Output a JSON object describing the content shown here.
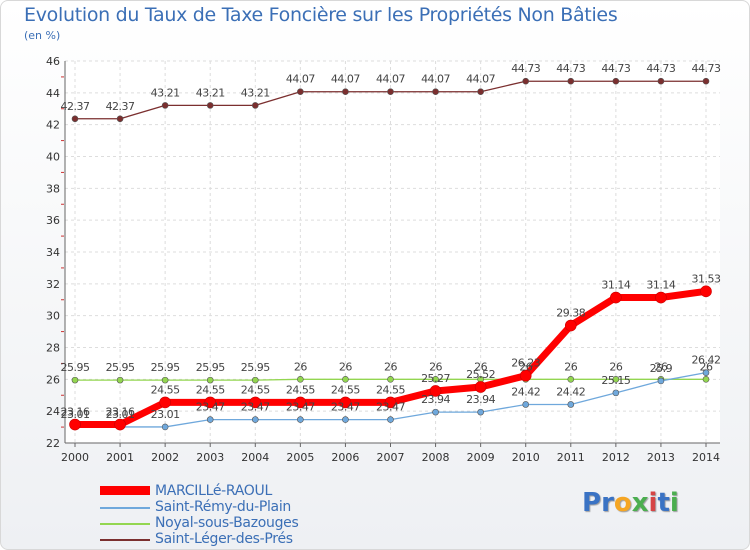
{
  "chart_data": {
    "type": "line",
    "title": "Evolution du Taux de Taxe Foncière sur les Propriétés Non Bâties",
    "ylabel": "(en %)",
    "ylim": [
      22,
      46
    ],
    "yticks": [
      "22",
      "24",
      "26",
      "28",
      "30",
      "32",
      "34",
      "36",
      "38",
      "40",
      "42",
      "44",
      "46"
    ],
    "categories": [
      "2000",
      "2001",
      "2002",
      "2003",
      "2004",
      "2005",
      "2006",
      "2007",
      "2008",
      "2009",
      "2010",
      "2011",
      "2012",
      "2013",
      "2014"
    ],
    "series": [
      {
        "name": "MARCILLé-RAOUL",
        "color": "#ff0000",
        "values": [
          23.16,
          23.16,
          24.55,
          24.55,
          24.55,
          24.55,
          24.55,
          24.55,
          25.27,
          25.52,
          26.23,
          29.38,
          31.14,
          31.14,
          31.53
        ],
        "labels": [
          "23.16",
          "23.16",
          "24.55",
          "24.55",
          "24.55",
          "24.55",
          "24.55",
          "24.55",
          "25.27",
          "25.52",
          "26.23",
          "29.38",
          "31.14",
          "31.14",
          "31.53"
        ]
      },
      {
        "name": "Saint-Rémy-du-Plain",
        "color": "#6fa8dc",
        "values": [
          23.01,
          23.01,
          23.01,
          23.47,
          23.47,
          23.47,
          23.47,
          23.47,
          23.94,
          23.94,
          24.42,
          24.42,
          25.15,
          25.9,
          26.42
        ],
        "labels": [
          "23.01",
          "23.01",
          "23.01",
          "23.47",
          "23.47",
          "23.47",
          "23.47",
          "23.47",
          "23.94",
          "23.94",
          "24.42",
          "24.42",
          "25.15",
          "25.9",
          "26.42"
        ]
      },
      {
        "name": "Noyal-sous-Bazouges",
        "color": "#93d650",
        "values": [
          25.95,
          25.95,
          25.95,
          25.95,
          25.95,
          26,
          26,
          26,
          26,
          26,
          26,
          26,
          26,
          26,
          26
        ],
        "labels": [
          "25.95",
          "25.95",
          "25.95",
          "25.95",
          "25.95",
          "26",
          "26",
          "26",
          "26",
          "26",
          "26",
          "26",
          "26",
          "26",
          "26"
        ]
      },
      {
        "name": "Saint-Léger-des-Prés",
        "color": "#7b2f2f",
        "values": [
          42.37,
          42.37,
          43.21,
          43.21,
          43.21,
          44.07,
          44.07,
          44.07,
          44.07,
          44.07,
          44.73,
          44.73,
          44.73,
          44.73,
          44.73
        ],
        "labels": [
          "42.37",
          "42.37",
          "43.21",
          "43.21",
          "43.21",
          "44.07",
          "44.07",
          "44.07",
          "44.07",
          "44.07",
          "44.73",
          "44.73",
          "44.73",
          "44.73",
          "44.73"
        ]
      }
    ]
  },
  "legend": {
    "items": [
      "MARCILLé-RAOUL",
      "Saint-Rémy-du-Plain",
      "Noyal-sous-Bazouges",
      "Saint-Léger-des-Prés"
    ]
  },
  "logo": {
    "letters": [
      "P",
      "r",
      "o",
      "x",
      "i",
      "t",
      "i"
    ],
    "colors": [
      "#3a73c4",
      "#3a73c4",
      "#f5a623",
      "#4bae4f",
      "#d64545",
      "#3a73c4",
      "#4bae4f"
    ]
  }
}
